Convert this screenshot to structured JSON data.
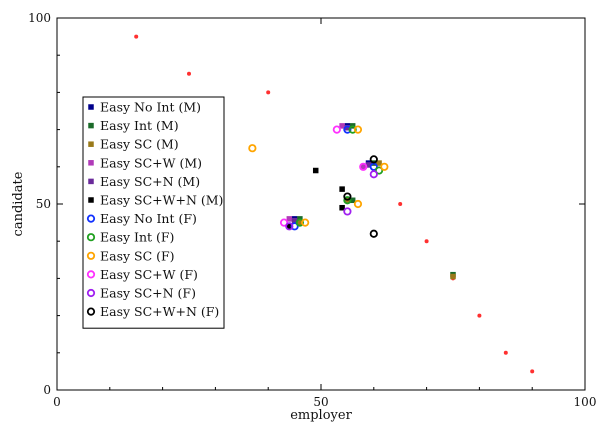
{
  "chart_data": {
    "type": "scatter",
    "title": "",
    "xlabel": "employer",
    "ylabel": "candidate",
    "xlim": [
      0,
      100
    ],
    "ylim": [
      0,
      100
    ],
    "xticks": [
      0,
      50,
      100
    ],
    "yticks": [
      0,
      50,
      100
    ],
    "grid": false,
    "legend_placement": "left",
    "series": [
      {
        "name": "",
        "marker": "dot",
        "color": "#ff3030",
        "points": [
          [
            15,
            95
          ],
          [
            25,
            85
          ],
          [
            40,
            80
          ],
          [
            65,
            50
          ],
          [
            70,
            40
          ],
          [
            75,
            30
          ],
          [
            80,
            20
          ],
          [
            85,
            10
          ],
          [
            90,
            5
          ]
        ]
      },
      {
        "name": "Easy No Int (M)",
        "marker": "square",
        "color": "#00008b",
        "points": [
          [
            45,
            46
          ],
          [
            55,
            71
          ],
          [
            59,
            61
          ]
        ]
      },
      {
        "name": "Easy Int (M)",
        "marker": "square",
        "color": "#1b6b2a",
        "points": [
          [
            46,
            46
          ],
          [
            56,
            51
          ],
          [
            56,
            71
          ],
          [
            60,
            61
          ],
          [
            75,
            31
          ]
        ]
      },
      {
        "name": "Easy SC (M)",
        "marker": "square",
        "color": "#9a7a1a",
        "points": [
          [
            46,
            45
          ],
          [
            55,
            51
          ],
          [
            61,
            61
          ],
          [
            75,
            30.5
          ]
        ]
      },
      {
        "name": "Easy SC+W (M)",
        "marker": "square",
        "color": "#b03ab8",
        "points": [
          [
            44,
            46
          ],
          [
            54,
            71
          ],
          [
            58,
            60
          ]
        ]
      },
      {
        "name": "Easy SC+N (M)",
        "marker": "square",
        "color": "#6a2a9a",
        "points": [
          [
            45,
            45.5
          ],
          [
            55,
            70.5
          ],
          [
            59,
            60.5
          ]
        ]
      },
      {
        "name": "Easy SC+W+N (M)",
        "marker": "square",
        "color": "#000000",
        "points": [
          [
            49,
            59
          ],
          [
            54,
            54
          ],
          [
            54,
            49
          ],
          [
            44,
            44
          ]
        ]
      },
      {
        "name": "Easy No Int (F)",
        "marker": "circle",
        "color": "#1030ff",
        "points": [
          [
            45,
            44
          ],
          [
            55,
            70
          ],
          [
            60,
            60
          ]
        ]
      },
      {
        "name": "Easy Int (F)",
        "marker": "circle",
        "color": "#20a020",
        "points": [
          [
            46,
            45
          ],
          [
            56,
            70
          ],
          [
            61,
            59
          ],
          [
            55,
            51
          ]
        ]
      },
      {
        "name": "Easy SC (F)",
        "marker": "circle",
        "color": "#ffa500",
        "points": [
          [
            37,
            65
          ],
          [
            47,
            45
          ],
          [
            57,
            70
          ],
          [
            62,
            60
          ],
          [
            57,
            50
          ]
        ]
      },
      {
        "name": "Easy SC+W (F)",
        "marker": "circle",
        "color": "#ff30ff",
        "points": [
          [
            43,
            45
          ],
          [
            53,
            70
          ],
          [
            58,
            60
          ]
        ]
      },
      {
        "name": "Easy SC+N (F)",
        "marker": "circle",
        "color": "#a020f0",
        "points": [
          [
            44,
            44
          ],
          [
            55,
            48
          ],
          [
            60,
            58
          ]
        ]
      },
      {
        "name": "Easy SC+W+N (F)",
        "marker": "circle",
        "color": "#000000",
        "points": [
          [
            55,
            52
          ],
          [
            60,
            62
          ],
          [
            60,
            42
          ]
        ]
      }
    ]
  }
}
